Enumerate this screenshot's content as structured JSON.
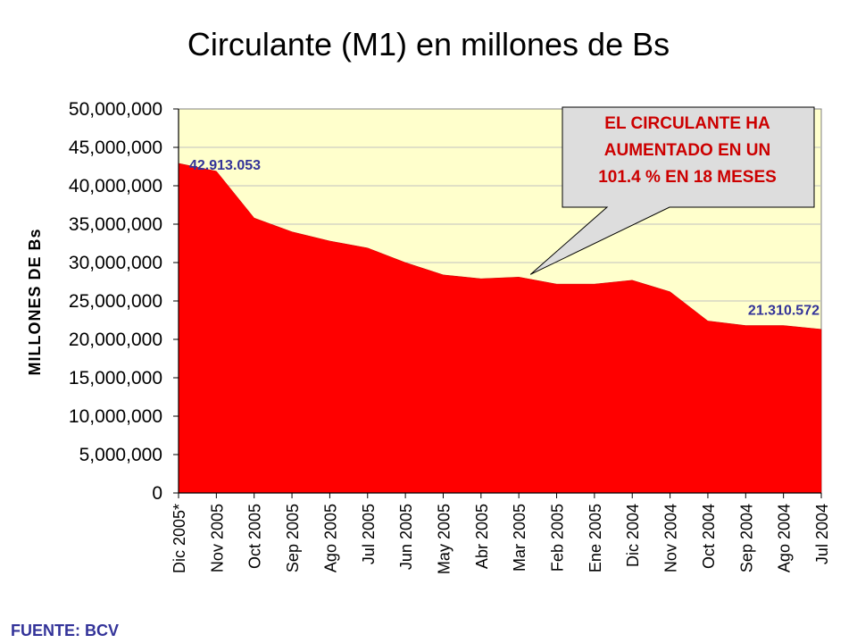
{
  "chart_data": {
    "type": "area",
    "title": "Circulante (M1) en millones de Bs",
    "xlabel": "",
    "ylabel": "MILLONES DE Bs",
    "ylim": [
      0,
      50000000
    ],
    "yticks": [
      0,
      5000000,
      10000000,
      15000000,
      20000000,
      25000000,
      30000000,
      35000000,
      40000000,
      45000000,
      50000000
    ],
    "ytick_labels": [
      "0",
      "5,000,000",
      "10,000,000",
      "15,000,000",
      "20,000,000",
      "25,000,000",
      "30,000,000",
      "35,000,000",
      "40,000,000",
      "45,000,000",
      "50,000,000"
    ],
    "categories": [
      "Dic 2005*",
      "Nov 2005",
      "Oct 2005",
      "Sep 2005",
      "Ago 2005",
      "Jul 2005",
      "Jun 2005",
      "May 2005",
      "Abr 2005",
      "Mar 2005",
      "Feb 2005",
      "Ene 2005",
      "Dic 2004",
      "Nov 2004",
      "Oct 2004",
      "Sep 2004",
      "Ago 2004",
      "Jul 2004"
    ],
    "series": [
      {
        "name": "Circulante (M1)",
        "values": [
          42913053,
          41900000,
          35800000,
          34000000,
          32800000,
          31900000,
          30000000,
          28400000,
          27900000,
          28100000,
          27200000,
          27200000,
          27700000,
          26200000,
          22400000,
          21800000,
          21800000,
          21310572
        ]
      }
    ],
    "data_labels": [
      {
        "index": 0,
        "text": "42.913.053"
      },
      {
        "index": 17,
        "text": "21.310.572"
      }
    ],
    "annotation": {
      "lines": [
        "EL CIRCULANTE HA",
        "AUMENTADO EN UN",
        "101.4 % EN 18 MESES"
      ]
    },
    "grid": true,
    "legend": "none",
    "colors": {
      "area_fill": "#ff0000",
      "plot_background": "#ffffcc",
      "gridline": "#c0c0c0",
      "axis": "#000000",
      "data_label": "#333399",
      "callout_fill": "#dddddd",
      "callout_text": "#cc0000"
    }
  },
  "source_note": "FUENTE: BCV"
}
